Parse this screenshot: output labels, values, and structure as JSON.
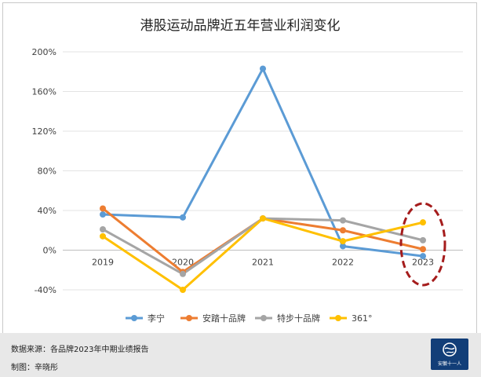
{
  "chart_data": {
    "type": "line",
    "title": "港股运动品牌近五年营业利润变化",
    "xlabel": "",
    "ylabel": "",
    "categories": [
      "2019",
      "2020",
      "2021",
      "2022",
      "2023"
    ],
    "y_ticks": [
      "200%",
      "160%",
      "120%",
      "80%",
      "40%",
      "0%",
      "-40%"
    ],
    "y_tick_values": [
      200,
      160,
      120,
      80,
      40,
      0,
      -40
    ],
    "ylim": [
      -40,
      200
    ],
    "grid": true,
    "legend_position": "bottom",
    "series": [
      {
        "name": "李宁",
        "color": "#5b9bd5",
        "values": [
          36,
          33,
          183,
          4,
          -6
        ]
      },
      {
        "name": "安踏十品牌",
        "color": "#ed7d31",
        "values": [
          42,
          -22,
          32,
          20,
          1
        ]
      },
      {
        "name": "特步十品牌",
        "color": "#a5a5a5",
        "values": [
          21,
          -24,
          32,
          30,
          10
        ]
      },
      {
        "name": "361°",
        "color": "#ffc000",
        "values": [
          14,
          -40,
          32,
          9,
          28
        ]
      }
    ],
    "highlight": {
      "category": "2023",
      "color": "#a51c1c",
      "style": "dashed-ellipse"
    }
  },
  "footer": {
    "source": "数据来源：各品牌2023年中期业绩报告",
    "author": "制图：辛晓彤",
    "logo_text": "安徽十一人"
  }
}
